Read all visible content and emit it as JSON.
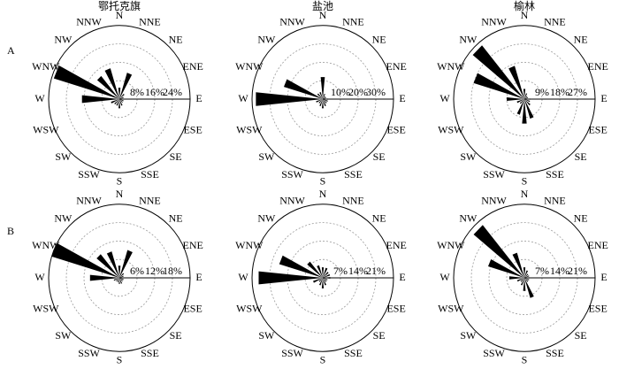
{
  "row_labels": [
    "A",
    "B"
  ],
  "chart_data": [
    {
      "type": "wind_rose",
      "title": "鄂托克旗",
      "categories": [
        "N",
        "NNE",
        "NE",
        "ENE",
        "E",
        "ESE",
        "SE",
        "SSE",
        "S",
        "SSW",
        "SW",
        "WSW",
        "W",
        "WNW",
        "NW",
        "NNW"
      ],
      "values": [
        5,
        12,
        3,
        2,
        2,
        2,
        2,
        3,
        4,
        3,
        3,
        4,
        17,
        31,
        13,
        14
      ],
      "color": "#000000",
      "rlim": [
        0,
        32
      ],
      "rticks": [
        {
          "value": 8,
          "label": "8%"
        },
        {
          "value": 16,
          "label": "16%"
        },
        {
          "value": 24,
          "label": "24%"
        }
      ],
      "grid": true
    },
    {
      "type": "wind_rose",
      "title": "盐池",
      "categories": [
        "N",
        "NNE",
        "NE",
        "ENE",
        "E",
        "ESE",
        "SE",
        "SSE",
        "S",
        "SSW",
        "SW",
        "WSW",
        "W",
        "WNW",
        "NW",
        "NNW"
      ],
      "values": [
        12,
        3,
        2,
        2,
        3,
        3,
        3,
        4,
        5,
        4,
        3,
        4,
        38,
        23,
        4,
        4
      ],
      "color": "#000000",
      "rlim": [
        0,
        40
      ],
      "rticks": [
        {
          "value": 10,
          "label": "10%"
        },
        {
          "value": 20,
          "label": "20%"
        },
        {
          "value": 30,
          "label": "30%"
        }
      ],
      "grid": true
    },
    {
      "type": "wind_rose",
      "title": "榆林",
      "categories": [
        "N",
        "NNE",
        "NE",
        "ENE",
        "E",
        "ESE",
        "SE",
        "SSE",
        "S",
        "SSW",
        "SW",
        "WSW",
        "W",
        "WNW",
        "NW",
        "NNW"
      ],
      "values": [
        5,
        3,
        2,
        2,
        3,
        3,
        4,
        10,
        12,
        8,
        3,
        4,
        9,
        27,
        34,
        17
      ],
      "color": "#000000",
      "rlim": [
        0,
        36
      ],
      "rticks": [
        {
          "value": 9,
          "label": "9%"
        },
        {
          "value": 18,
          "label": "18%"
        },
        {
          "value": 27,
          "label": "27%"
        }
      ],
      "grid": true
    },
    {
      "type": "wind_rose",
      "categories": [
        "N",
        "NNE",
        "NE",
        "ENE",
        "E",
        "ESE",
        "SE",
        "SSE",
        "S",
        "SSW",
        "SW",
        "WSW",
        "W",
        "WNW",
        "NW",
        "NNW"
      ],
      "values": [
        4,
        9.5,
        2,
        1.5,
        1.5,
        1.5,
        1.5,
        2,
        2,
        1.5,
        1.5,
        2,
        10,
        24,
        10,
        9
      ],
      "color": "#000000",
      "rlim": [
        0,
        24
      ],
      "rticks": [
        {
          "value": 6,
          "label": "6%"
        },
        {
          "value": 12,
          "label": "12%"
        },
        {
          "value": 18,
          "label": "18%"
        }
      ],
      "grid": true
    },
    {
      "type": "wind_rose",
      "categories": [
        "N",
        "NNE",
        "NE",
        "ENE",
        "E",
        "ESE",
        "SE",
        "SSE",
        "S",
        "SSW",
        "SW",
        "WSW",
        "W",
        "WNW",
        "NW",
        "NNW"
      ],
      "values": [
        4,
        4,
        3,
        3,
        3,
        2,
        2,
        3,
        4,
        3,
        2,
        4,
        25.5,
        18,
        8,
        5
      ],
      "color": "#000000",
      "rlim": [
        0,
        28
      ],
      "rticks": [
        {
          "value": 7,
          "label": "7%"
        },
        {
          "value": 14,
          "label": "14%"
        },
        {
          "value": 21,
          "label": "21%"
        }
      ],
      "grid": true
    },
    {
      "type": "wind_rose",
      "categories": [
        "N",
        "NNE",
        "NE",
        "ENE",
        "E",
        "ESE",
        "SE",
        "SSE",
        "S",
        "SSW",
        "SW",
        "WSW",
        "W",
        "WNW",
        "NW",
        "NNW"
      ],
      "values": [
        4,
        3,
        2,
        2,
        2,
        2,
        2,
        8,
        5,
        3,
        2,
        3,
        6,
        15,
        26,
        10
      ],
      "color": "#000000",
      "rlim": [
        0,
        28
      ],
      "rticks": [
        {
          "value": 7,
          "label": "7%"
        },
        {
          "value": 14,
          "label": "14%"
        },
        {
          "value": 21,
          "label": "21%"
        }
      ],
      "grid": true
    }
  ]
}
